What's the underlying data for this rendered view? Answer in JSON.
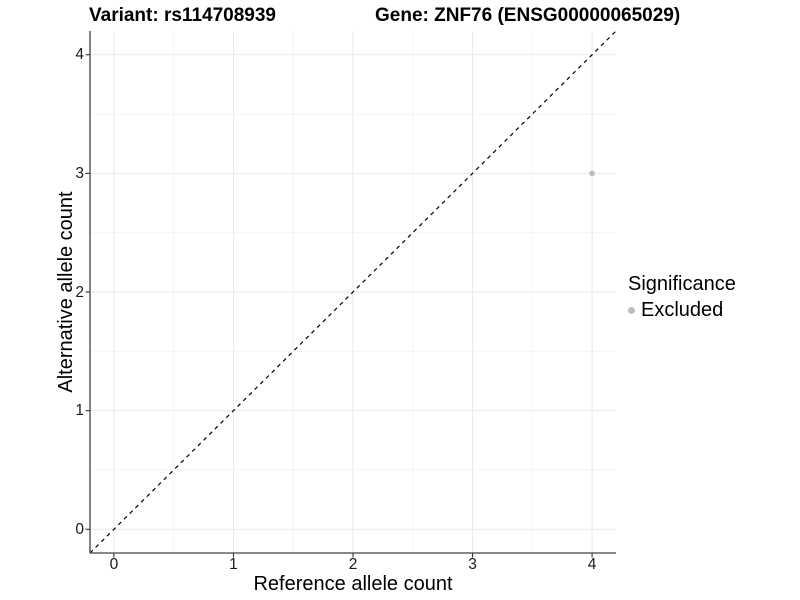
{
  "titles": {
    "variant": "Variant: rs114708939",
    "gene": "Gene: ZNF76 (ENSG00000065029)"
  },
  "axes": {
    "x_label": "Reference allele count",
    "y_label": "Alternative allele count"
  },
  "legend": {
    "title": "Significance",
    "items": [
      {
        "label": "Excluded",
        "color": "#bdbdbd"
      }
    ]
  },
  "colors": {
    "axis_line": "#404040",
    "tick_mark": "#333333",
    "major_grid": "#e9e9e9",
    "minor_grid": "#f5f5f5",
    "reference_line": "#000000",
    "background": "#ffffff"
  },
  "chart_data": {
    "type": "scatter",
    "title": "Variant: rs114708939 | Gene: ZNF76 (ENSG00000065029)",
    "xlabel": "Reference allele count",
    "ylabel": "Alternative allele count",
    "xlim": [
      -0.2,
      4.2
    ],
    "ylim": [
      -0.2,
      4.2
    ],
    "x_ticks": [
      0,
      1,
      2,
      3,
      4
    ],
    "y_ticks": [
      0,
      1,
      2,
      3,
      4
    ],
    "grid": {
      "minor_step": 0.5,
      "on": true
    },
    "reference_line": {
      "slope": 1,
      "intercept": 0,
      "style": "dashed"
    },
    "legend_position": "right",
    "series": [
      {
        "name": "Excluded",
        "color": "#bdbdbd",
        "point_radius": 2.8,
        "points": [
          {
            "x": 4,
            "y": 3
          }
        ]
      }
    ]
  }
}
